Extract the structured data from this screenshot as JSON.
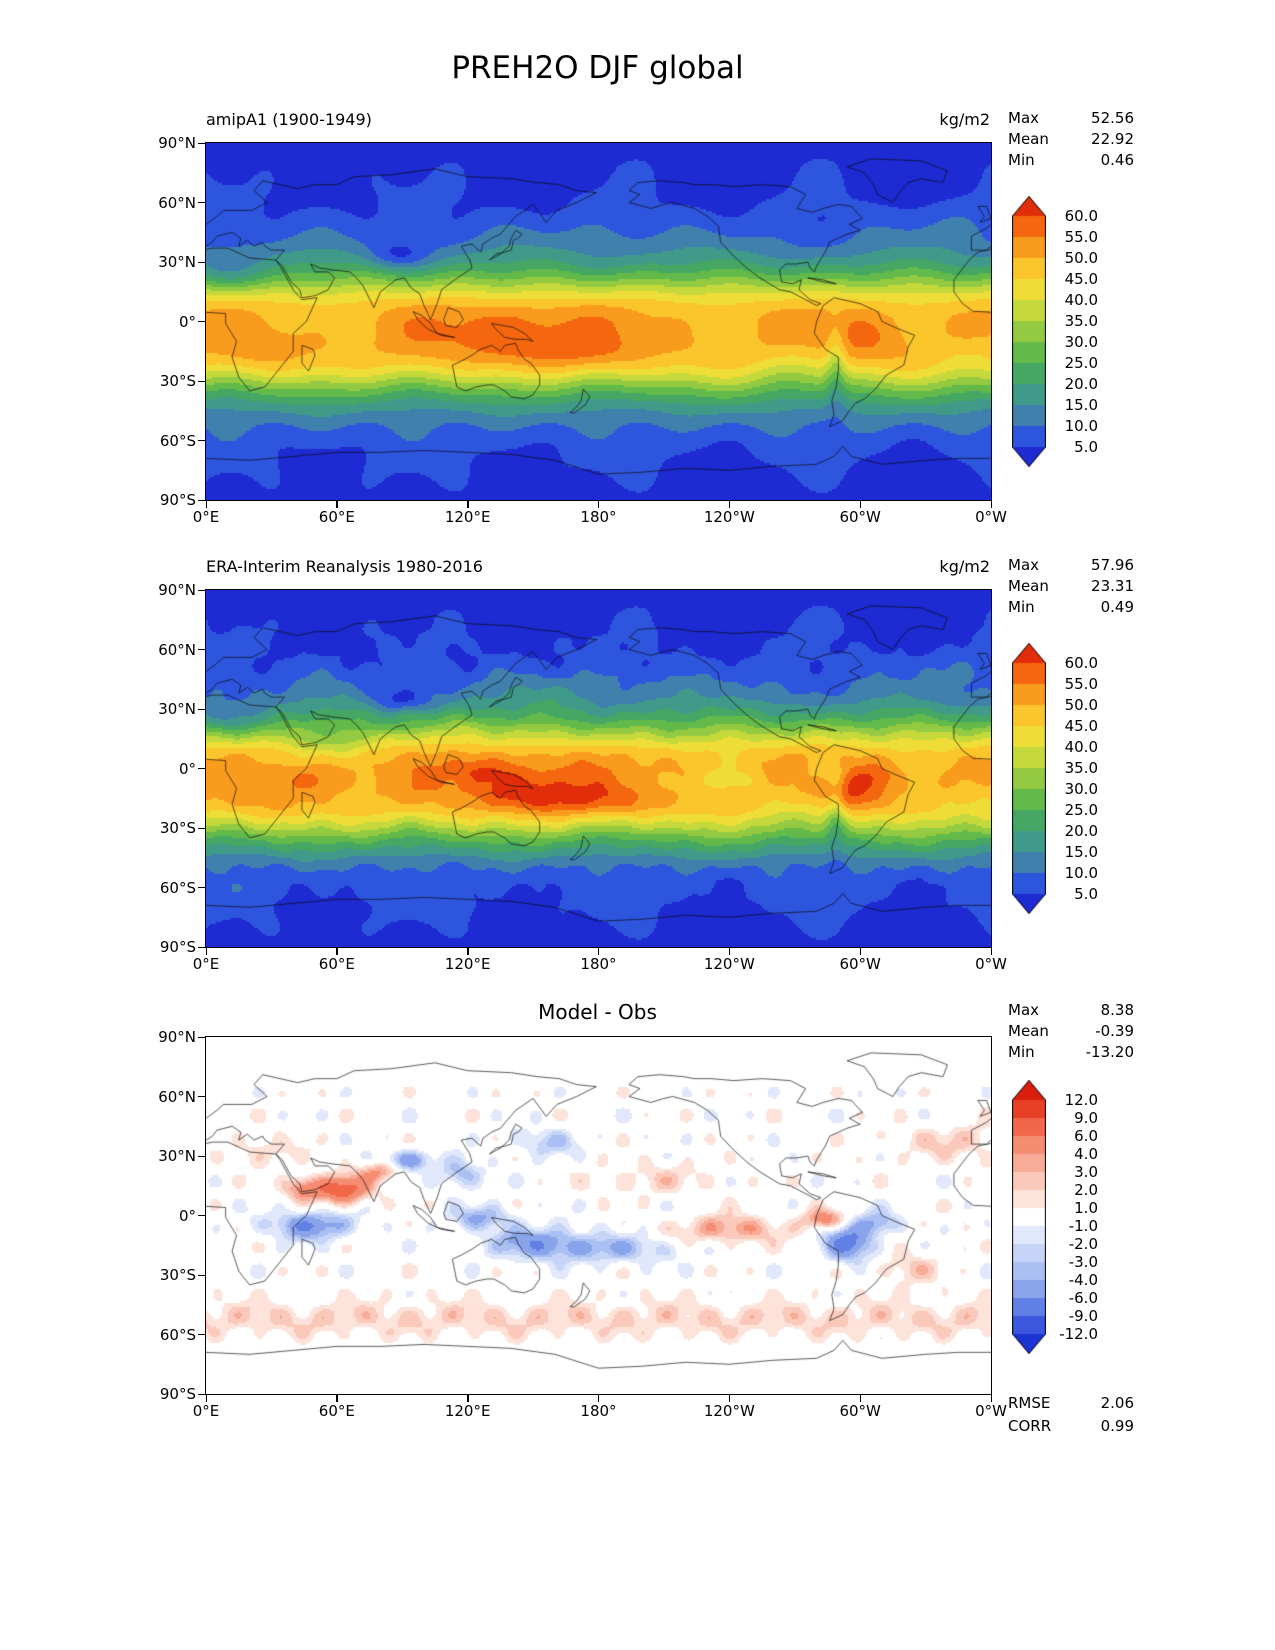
{
  "figure": {
    "title": "PREH2O DJF global"
  },
  "axes": {
    "lat_labels": [
      "90°N",
      "60°N",
      "30°N",
      "0°",
      "30°S",
      "60°S",
      "90°S"
    ],
    "lon_labels": [
      "0°E",
      "60°E",
      "120°E",
      "180°",
      "120°W",
      "60°W",
      "0°W"
    ]
  },
  "chart_data": {
    "type": "heatmap",
    "description": "Three-panel global filled-contour maps of precipitable water (PREH2O), DJF mean: model, reanalysis, and model-minus-obs difference",
    "projection": "equirectangular, longitude 0°E to 0°W (0-360), latitude 90°N to 90°S",
    "panels": [
      {
        "id": "model",
        "title": "amipA1 (1900-1949)",
        "units": "kg/m2",
        "stats": [
          {
            "label": "Max",
            "value": "52.56"
          },
          {
            "label": "Mean",
            "value": "22.92"
          },
          {
            "label": "Min",
            "value": "0.46"
          }
        ],
        "colorbar": {
          "extend": "both",
          "tick_labels": [
            "60.0",
            "55.0",
            "50.0",
            "45.0",
            "40.0",
            "35.0",
            "30.0",
            "25.0",
            "20.0",
            "15.0",
            "10.0",
            "5.0"
          ],
          "levels": [
            5,
            10,
            15,
            20,
            25,
            30,
            35,
            40,
            45,
            50,
            55,
            60
          ],
          "colors": [
            "#1e2ad2",
            "#2e55de",
            "#4080ad",
            "#3f9a8a",
            "#45a763",
            "#63b94a",
            "#93ca41",
            "#c6d93c",
            "#eedd36",
            "#fbc62b",
            "#f99c1e",
            "#f4670e",
            "#e22d0a"
          ]
        }
      },
      {
        "id": "obs",
        "title": "ERA-Interim Reanalysis 1980-2016",
        "units": "kg/m2",
        "stats": [
          {
            "label": "Max",
            "value": "57.96"
          },
          {
            "label": "Mean",
            "value": "23.31"
          },
          {
            "label": "Min",
            "value": "0.49"
          }
        ],
        "colorbar": {
          "extend": "both",
          "tick_labels": [
            "60.0",
            "55.0",
            "50.0",
            "45.0",
            "40.0",
            "35.0",
            "30.0",
            "25.0",
            "20.0",
            "15.0",
            "10.0",
            "5.0"
          ],
          "levels": [
            5,
            10,
            15,
            20,
            25,
            30,
            35,
            40,
            45,
            50,
            55,
            60
          ],
          "colors": [
            "#1e2ad2",
            "#2e55de",
            "#4080ad",
            "#3f9a8a",
            "#45a763",
            "#63b94a",
            "#93ca41",
            "#c6d93c",
            "#eedd36",
            "#fbc62b",
            "#f99c1e",
            "#f4670e",
            "#e22d0a"
          ]
        }
      },
      {
        "id": "diff",
        "title": "Model - Obs",
        "units": "",
        "stats": [
          {
            "label": "Max",
            "value": "8.38"
          },
          {
            "label": "Mean",
            "value": "-0.39"
          },
          {
            "label": "Min",
            "value": "-13.20"
          }
        ],
        "colorbar": {
          "extend": "both",
          "tick_labels": [
            "12.0",
            "9.0",
            "6.0",
            "4.0",
            "3.0",
            "2.0",
            "1.0",
            "-1.0",
            "-2.0",
            "-3.0",
            "-4.0",
            "-6.0",
            "-9.0",
            "-12.0"
          ],
          "levels": [
            -12,
            -9,
            -6,
            -4,
            -3,
            -2,
            -1,
            1,
            2,
            3,
            4,
            6,
            9,
            12
          ],
          "colors": [
            "#1c33d4",
            "#3a57dd",
            "#6080e5",
            "#8aa4ec",
            "#aabff2",
            "#c6d5f7",
            "#e1e8fb",
            "#ffffff",
            "#fde3da",
            "#fbc9bb",
            "#f8ab96",
            "#f58d72",
            "#f2674a",
            "#e84026",
            "#d91e0e"
          ]
        },
        "metrics": [
          {
            "label": "RMSE",
            "value": "2.06"
          },
          {
            "label": "CORR",
            "value": "0.99"
          }
        ]
      }
    ]
  }
}
